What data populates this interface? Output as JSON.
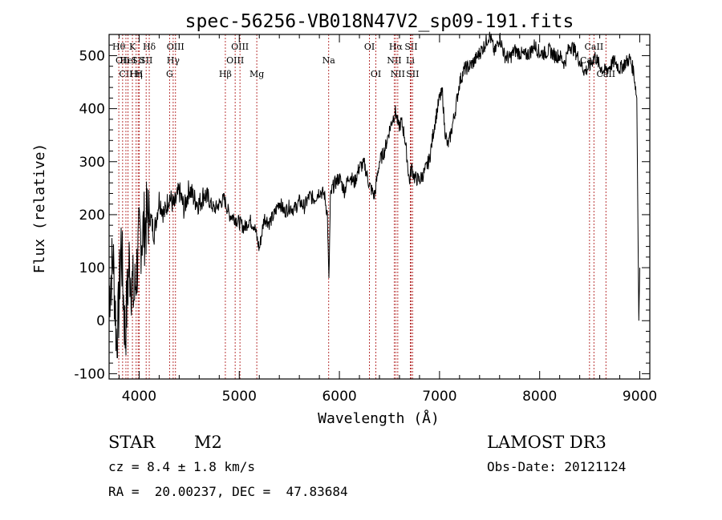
{
  "chart_data": {
    "type": "line",
    "title": "spec-56256-VB018N47V2_sp09-191.fits",
    "xlabel": "Wavelength (Å)",
    "ylabel": "Flux (relative)",
    "xlim": [
      3700,
      9100
    ],
    "ylim": [
      -110,
      540
    ],
    "xticks": [
      4000,
      5000,
      6000,
      7000,
      8000,
      9000
    ],
    "yticks": [
      -100,
      0,
      100,
      200,
      300,
      400,
      500
    ],
    "series": [
      {
        "name": "flux",
        "x": [
          3700,
          3740,
          3780,
          3820,
          3860,
          3900,
          3950,
          4000,
          4050,
          4100,
          4150,
          4200,
          4250,
          4300,
          4350,
          4400,
          4450,
          4500,
          4550,
          4600,
          4650,
          4700,
          4750,
          4800,
          4850,
          4900,
          4950,
          5000,
          5050,
          5100,
          5150,
          5200,
          5250,
          5300,
          5350,
          5400,
          5450,
          5500,
          5550,
          5600,
          5650,
          5700,
          5750,
          5800,
          5850,
          5880,
          5895,
          5910,
          5930,
          5960,
          6000,
          6050,
          6100,
          6150,
          6200,
          6250,
          6300,
          6350,
          6400,
          6450,
          6500,
          6530,
          6563,
          6590,
          6620,
          6650,
          6680,
          6700,
          6720,
          6750,
          6800,
          6850,
          6900,
          6950,
          7000,
          7030,
          7050,
          7080,
          7100,
          7140,
          7160,
          7200,
          7250,
          7300,
          7350,
          7400,
          7450,
          7500,
          7550,
          7600,
          7650,
          7700,
          7750,
          7800,
          7850,
          7900,
          7950,
          8000,
          8050,
          8100,
          8150,
          8200,
          8250,
          8300,
          8350,
          8400,
          8450,
          8500,
          8550,
          8600,
          8650,
          8700,
          8750,
          8800,
          8850,
          8900,
          8940,
          8970,
          8990,
          9000
        ],
        "y": [
          50,
          120,
          -60,
          150,
          -30,
          110,
          40,
          150,
          175,
          205,
          165,
          230,
          200,
          235,
          215,
          245,
          210,
          250,
          230,
          220,
          240,
          225,
          210,
          220,
          230,
          200,
          195,
          185,
          175,
          190,
          180,
          135,
          195,
          185,
          200,
          225,
          205,
          215,
          210,
          225,
          215,
          235,
          230,
          245,
          238,
          200,
          70,
          230,
          250,
          260,
          270,
          245,
          275,
          260,
          290,
          295,
          255,
          235,
          300,
          320,
          360,
          380,
          395,
          365,
          375,
          350,
          300,
          260,
          290,
          270,
          265,
          280,
          305,
          370,
          420,
          430,
          365,
          330,
          340,
          380,
          400,
          450,
          475,
          480,
          490,
          505,
          520,
          540,
          505,
          535,
          500,
          495,
          510,
          505,
          500,
          505,
          520,
          505,
          505,
          510,
          500,
          500,
          485,
          520,
          510,
          490,
          470,
          480,
          500,
          480,
          470,
          480,
          490,
          475,
          485,
          495,
          470,
          420,
          0,
          100
        ]
      }
    ],
    "lines": [
      {
        "wl": 3797,
        "name": "Hθ",
        "row": 1
      },
      {
        "wl": 3835,
        "name": "OII",
        "row": 2
      },
      {
        "wl": 3868,
        "name": "CII",
        "row": 3
      },
      {
        "wl": 3889,
        "name": "HeI",
        "row": 2
      },
      {
        "wl": 3933,
        "name": "K",
        "row": 1
      },
      {
        "wl": 3970,
        "name": "Hη",
        "row": 3
      },
      {
        "wl": 3990,
        "name": "SII",
        "row": 2
      },
      {
        "wl": 4000,
        "name": "H",
        "row": 3
      },
      {
        "wl": 4101,
        "name": "Hδ",
        "row": 1
      },
      {
        "wl": 4070,
        "name": "SII",
        "row": 2
      },
      {
        "wl": 4304,
        "name": "G",
        "row": 3
      },
      {
        "wl": 4340,
        "name": "Hγ",
        "row": 2
      },
      {
        "wl": 4363,
        "name": "OIII",
        "row": 1
      },
      {
        "wl": 4861,
        "name": "Hβ",
        "row": 3
      },
      {
        "wl": 4959,
        "name": "OIII",
        "row": 2
      },
      {
        "wl": 5007,
        "name": "OIII",
        "row": 1
      },
      {
        "wl": 5175,
        "name": "Mg",
        "row": 3
      },
      {
        "wl": 5893,
        "name": "Na",
        "row": 2
      },
      {
        "wl": 6300,
        "name": "OI",
        "row": 1
      },
      {
        "wl": 6364,
        "name": "OI",
        "row": 3
      },
      {
        "wl": 6548,
        "name": "NII",
        "row": 2
      },
      {
        "wl": 6563,
        "name": "Hα",
        "row": 1
      },
      {
        "wl": 6583,
        "name": "NII",
        "row": 3
      },
      {
        "wl": 6708,
        "name": "Li",
        "row": 2
      },
      {
        "wl": 6716,
        "name": "SII",
        "row": 1
      },
      {
        "wl": 6731,
        "name": "SII",
        "row": 3
      },
      {
        "wl": 8498,
        "name": "CaII",
        "row": 2
      },
      {
        "wl": 8542,
        "name": "CaII",
        "row": 1
      },
      {
        "wl": 8662,
        "name": "CaII",
        "row": 3
      }
    ]
  },
  "info": {
    "class": "STAR",
    "subclass": "M2",
    "survey": "LAMOST DR3",
    "cz": "cz = 8.4 ± 1.8 km/s",
    "obs_date": "Obs-Date: 20121124",
    "coords": "RA =  20.00237, DEC =  47.83684"
  },
  "colors": {
    "line_marker": "#b22222",
    "spectrum": "#000000"
  }
}
